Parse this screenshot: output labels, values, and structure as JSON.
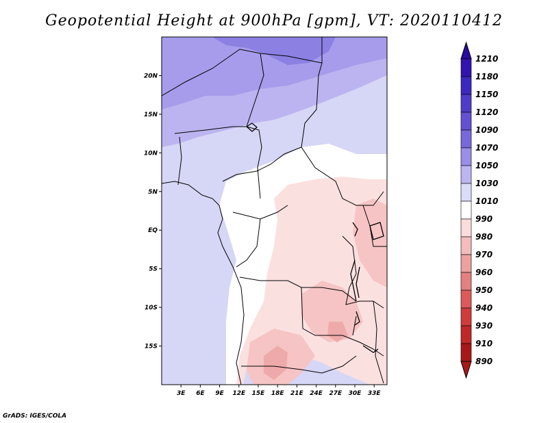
{
  "title": "Geopotential Height at 900hPa [gpm], VT: 2020110412",
  "credit": "GrADS: IGES/COLA",
  "map": {
    "lon_range": [
      0,
      35
    ],
    "lat_range": [
      -20,
      25
    ],
    "x_ticks": [
      {
        "value": 3,
        "label": "3E"
      },
      {
        "value": 6,
        "label": "6E"
      },
      {
        "value": 9,
        "label": "9E"
      },
      {
        "value": 12,
        "label": "12E"
      },
      {
        "value": 15,
        "label": "15E"
      },
      {
        "value": 18,
        "label": "18E"
      },
      {
        "value": 21,
        "label": "21E"
      },
      {
        "value": 24,
        "label": "24E"
      },
      {
        "value": 27,
        "label": "27E"
      },
      {
        "value": 30,
        "label": "30E"
      },
      {
        "value": 33,
        "label": "33E"
      }
    ],
    "y_ticks": [
      {
        "value": 20,
        "label": "20N"
      },
      {
        "value": 15,
        "label": "15N"
      },
      {
        "value": 10,
        "label": "10N"
      },
      {
        "value": 5,
        "label": "5N"
      },
      {
        "value": 0,
        "label": "EQ"
      },
      {
        "value": -5,
        "label": "5S"
      },
      {
        "value": -10,
        "label": "10S"
      },
      {
        "value": -15,
        "label": "15S"
      }
    ]
  },
  "legend": {
    "levels": [
      "1210",
      "1180",
      "1150",
      "1120",
      "1090",
      "1070",
      "1050",
      "1030",
      "1010",
      "990",
      "980",
      "970",
      "960",
      "950",
      "940",
      "930",
      "910",
      "890"
    ],
    "colors": [
      "#2a0aa0",
      "#3214b0",
      "#3c28c0",
      "#503cc8",
      "#6450d2",
      "#7868dc",
      "#9a8ee6",
      "#bdb5f0",
      "#dcdcfa",
      "#ffffff",
      "#fadcdc",
      "#f4bcbc",
      "#eca0a0",
      "#e48080",
      "#dc5a5a",
      "#d03c3c",
      "#c02828",
      "#a81818"
    ]
  }
}
